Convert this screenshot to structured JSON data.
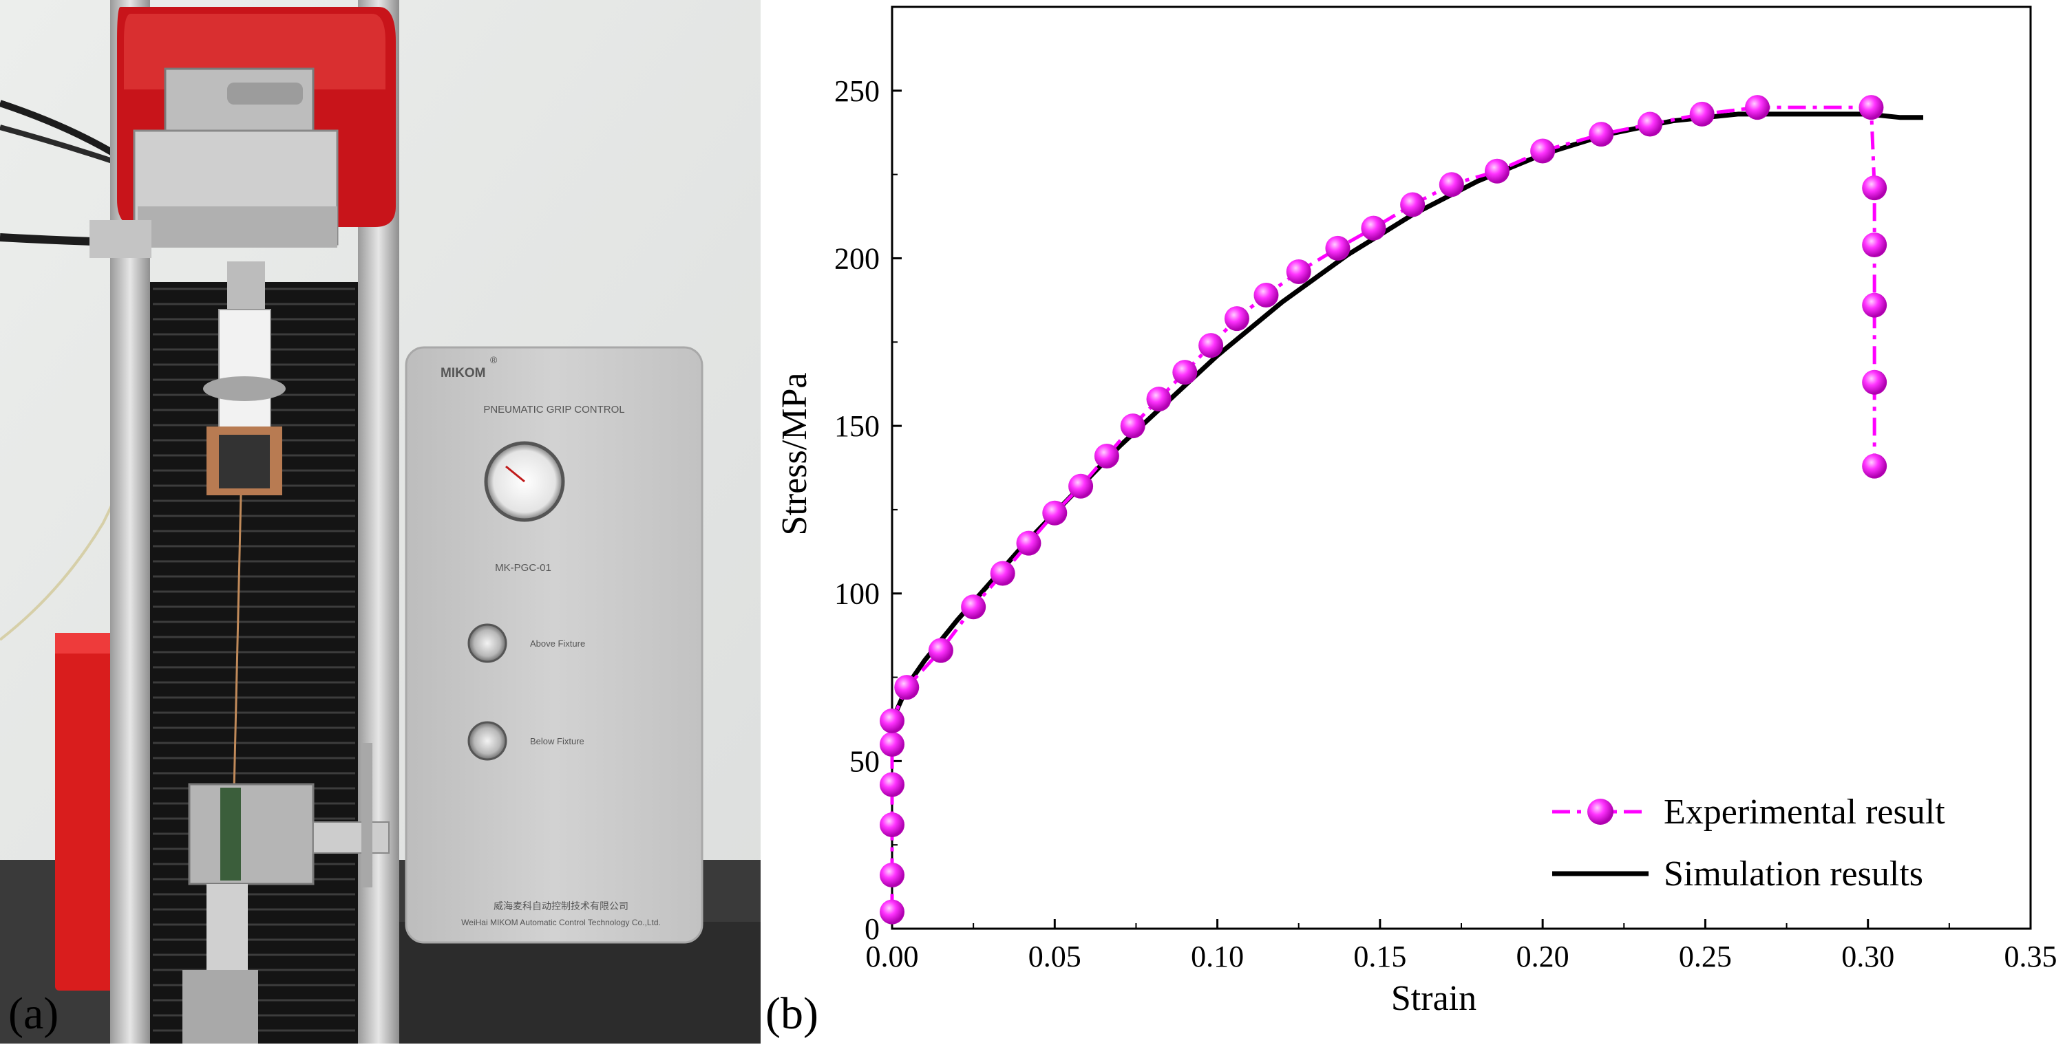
{
  "panels": {
    "a_label": "(a)",
    "b_label": "(b)"
  },
  "photo": {
    "device_brand": "MIKOM",
    "device_brand_mark": "®",
    "panel_title": "PNEUMATIC GRIP CONTROL",
    "model": "MK-PGC-01",
    "button_above": "Above Fixture",
    "button_below": "Below Fixture",
    "maker_cn": "威海麦科自动控制技术有限公司",
    "maker_en": "WeiHai MIKOM Automatic Control Technology Co.,Ltd.",
    "colors": {
      "red_housing": "#c8141a",
      "device_body": "#c9c9c9",
      "frame": "#d6d6d6"
    }
  },
  "chart_data": {
    "type": "line",
    "title": "",
    "xlabel": "Strain",
    "ylabel": "Stress/MPa",
    "xlim": [
      0,
      0.35
    ],
    "ylim": [
      0,
      275
    ],
    "xticks": [
      "0.00",
      "0.05",
      "0.10",
      "0.15",
      "0.20",
      "0.25",
      "0.30",
      "0.35"
    ],
    "yticks": [
      "0",
      "50",
      "100",
      "150",
      "200",
      "250"
    ],
    "legend_position": "bottom-right",
    "grid": false,
    "series": [
      {
        "name": "Experimental result",
        "style": "dash-dot line with sphere markers",
        "color": "#ff00ff",
        "x": [
          0.0,
          0.0,
          0.0,
          0.0,
          0.0,
          0.0,
          0.0045,
          0.015,
          0.025,
          0.034,
          0.042,
          0.05,
          0.058,
          0.066,
          0.074,
          0.082,
          0.09,
          0.098,
          0.106,
          0.115,
          0.125,
          0.137,
          0.148,
          0.16,
          0.172,
          0.186,
          0.2,
          0.218,
          0.233,
          0.249,
          0.266,
          0.301,
          0.302,
          0.302,
          0.302,
          0.302,
          0.302
        ],
        "y": [
          5,
          16,
          31,
          43,
          55,
          62,
          72,
          83,
          96,
          106,
          115,
          124,
          132,
          141,
          150,
          158,
          166,
          174,
          182,
          189,
          196,
          203,
          209,
          216,
          222,
          226,
          232,
          237,
          240,
          243,
          245,
          245,
          221,
          204,
          186,
          163,
          138
        ]
      },
      {
        "name": "Simulation results",
        "style": "solid line",
        "color": "#000000",
        "x": [
          0.0,
          0.005,
          0.01,
          0.02,
          0.03,
          0.04,
          0.05,
          0.06,
          0.07,
          0.08,
          0.09,
          0.1,
          0.11,
          0.12,
          0.13,
          0.14,
          0.15,
          0.16,
          0.17,
          0.18,
          0.19,
          0.2,
          0.21,
          0.22,
          0.23,
          0.24,
          0.25,
          0.26,
          0.27,
          0.28,
          0.29,
          0.3,
          0.31,
          0.317
        ],
        "y": [
          62,
          73,
          80,
          92,
          103,
          114,
          124,
          134,
          144,
          153,
          162,
          171,
          179,
          187,
          194,
          201,
          207,
          213,
          218,
          223,
          227,
          231,
          234,
          237,
          239,
          241,
          242,
          243,
          243,
          243,
          243,
          243,
          242,
          242
        ]
      }
    ]
  }
}
